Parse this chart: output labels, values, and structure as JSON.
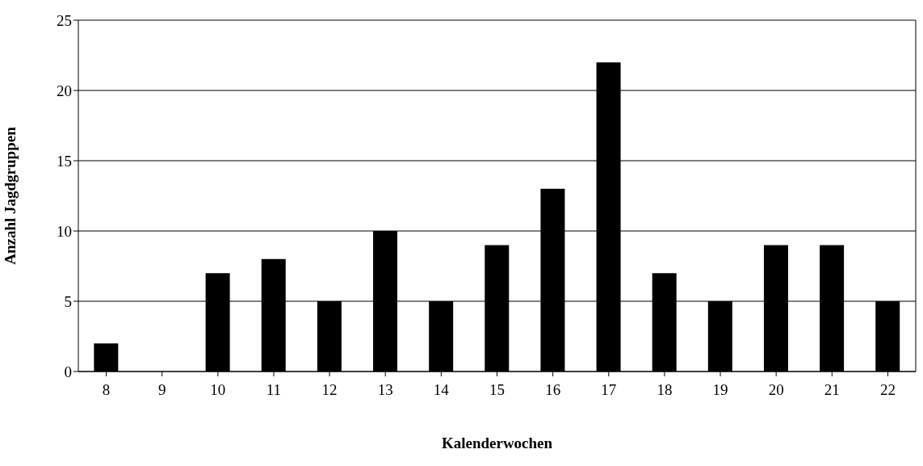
{
  "chart_data": {
    "type": "bar",
    "xlabel": "Kalenderwochen",
    "ylabel": "Anzahl Jagdgruppen",
    "categories": [
      "8",
      "9",
      "10",
      "11",
      "12",
      "13",
      "14",
      "15",
      "16",
      "17",
      "18",
      "19",
      "20",
      "21",
      "22"
    ],
    "values": [
      2,
      0,
      7,
      8,
      5,
      10,
      5,
      9,
      13,
      22,
      7,
      5,
      9,
      9,
      5
    ],
    "color": "#000000",
    "ylim": [
      0,
      25
    ],
    "yticks": [
      0,
      5,
      10,
      15,
      20,
      25
    ],
    "grid": "y"
  }
}
